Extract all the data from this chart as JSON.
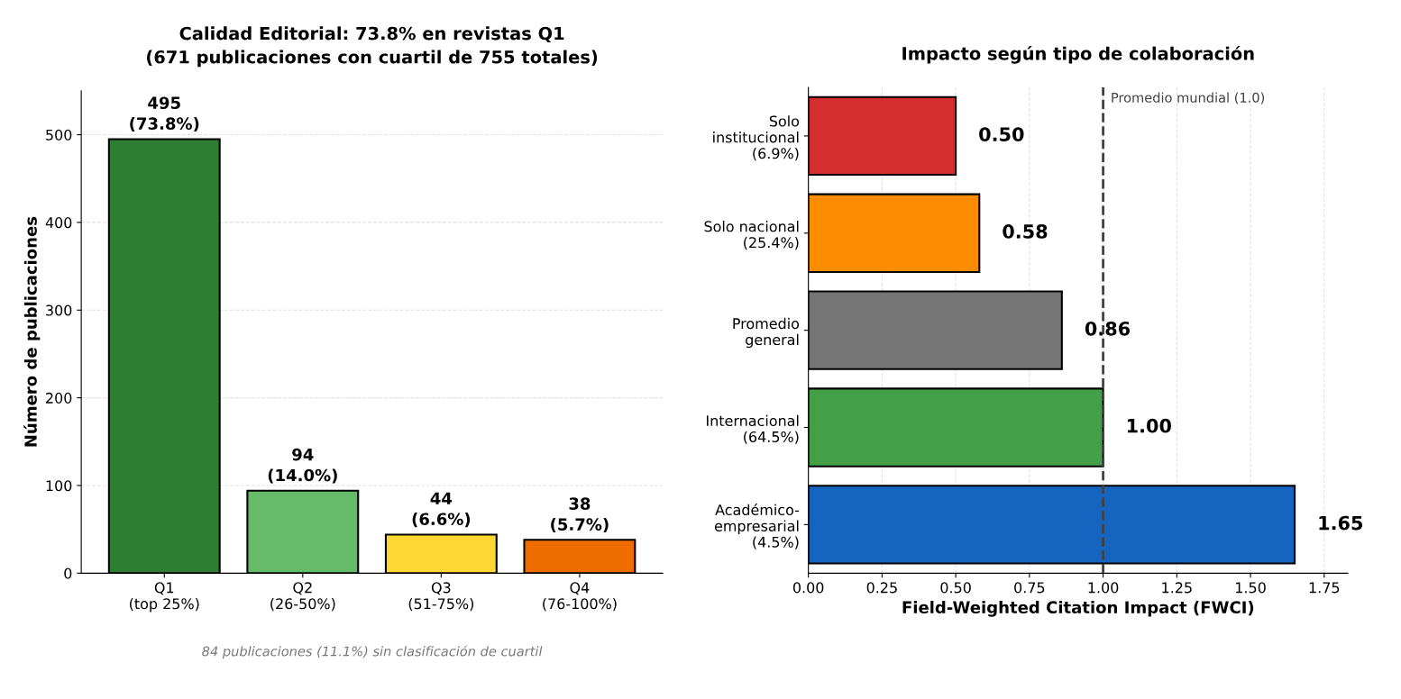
{
  "chart_data": [
    {
      "type": "bar",
      "title": "Calidad Editorial: 73.8% en revistas Q1\n(671 publicaciones con cuartil de 755 totales)",
      "ylabel": "Número de publicaciones",
      "categories": [
        "Q1\n(top 25%)",
        "Q2\n(26-50%)",
        "Q3\n(51-75%)",
        "Q4\n(76-100%)"
      ],
      "values": [
        495,
        94,
        44,
        38
      ],
      "colors": [
        "#2e7d32",
        "#66bb6a",
        "#fdd835",
        "#ef6c00"
      ],
      "value_labels": [
        "495\n(73.8%)",
        "94\n(14.0%)",
        "44\n(6.6%)",
        "38\n(5.7%)"
      ],
      "ylim": [
        0,
        550
      ],
      "yticks": [
        0,
        100,
        200,
        300,
        400,
        500
      ],
      "grid": "y",
      "annotations": [
        "84 publicaciones (11.1%) sin clasificación de cuartil"
      ]
    },
    {
      "type": "bar",
      "orientation": "horizontal",
      "title": "Impacto según tipo de colaboración",
      "xlabel": "Field-Weighted Citation Impact (FWCI)",
      "categories": [
        "Solo\ninstitucional\n(6.9%)",
        "Solo nacional\n(25.4%)",
        "Promedio\ngeneral",
        "Internacional\n(64.5%)",
        "Académico-\nempresarial\n(4.5%)"
      ],
      "values": [
        0.5,
        0.58,
        0.86,
        1.0,
        1.65
      ],
      "colors": [
        "#d32f2f",
        "#fb8c00",
        "#757575",
        "#43a047",
        "#1565c0"
      ],
      "value_labels": [
        "0.50",
        "0.58",
        "0.86",
        "1.00",
        "1.65"
      ],
      "xlim": [
        0,
        1.83
      ],
      "xticks": [
        {
          "value": 0,
          "label": "0.00"
        },
        {
          "value": 0.25,
          "label": "0.25"
        },
        {
          "value": 0.5,
          "label": "0.50"
        },
        {
          "value": 0.75,
          "label": "0.75"
        },
        {
          "value": 1.0,
          "label": "1.00"
        },
        {
          "value": 1.25,
          "label": "1.25"
        },
        {
          "value": 1.5,
          "label": "1.50"
        },
        {
          "value": 1.75,
          "label": "1.75"
        }
      ],
      "grid": "x",
      "ref_lines": [
        {
          "axis": "x",
          "value": 1.0,
          "label": "Promedio mundial (1.0)",
          "color": "#424242",
          "line_style": "dashed"
        }
      ]
    }
  ]
}
